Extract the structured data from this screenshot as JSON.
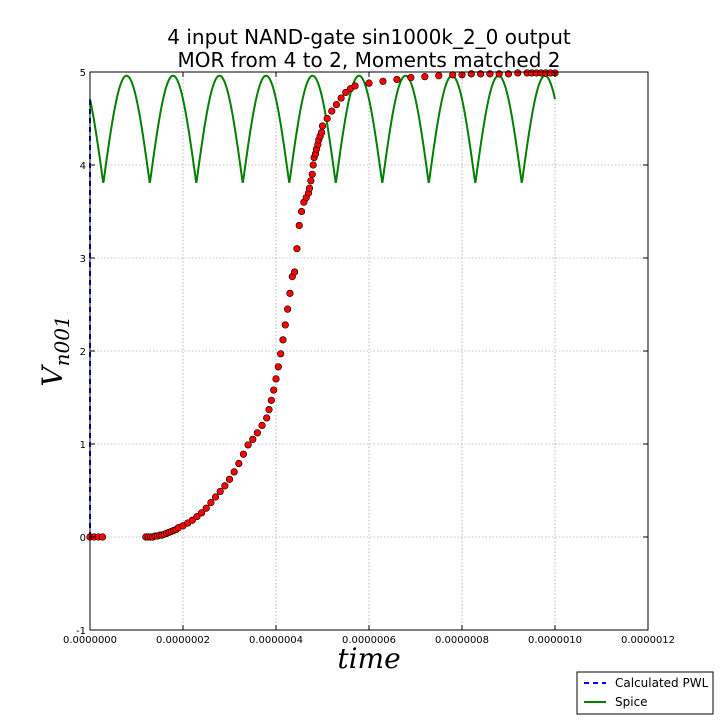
{
  "chart_data": {
    "type": "line",
    "title_line1": "4 input NAND-gate   sin1000k_2_0  output",
    "title_line2": "MOR from 4 to 2, Moments matched 2",
    "xlabel": "time",
    "ylabel_main": "V",
    "ylabel_sub": "n001",
    "xlim": [
      0,
      1.2e-06
    ],
    "ylim": [
      -1,
      5
    ],
    "x_ticks": [
      "0.0000000",
      "0.0000002",
      "0.0000004",
      "0.0000006",
      "0.0000008",
      "0.0000010",
      "0.0000012"
    ],
    "y_ticks": [
      "-1",
      "0",
      "1",
      "2",
      "3",
      "4",
      "5"
    ],
    "grid": true,
    "legend_position": "bottom-right",
    "series": [
      {
        "name": "Calculated PWL",
        "style": "dashed",
        "color": "#0000ff",
        "x": [
          0.0,
          0.0,
          0.0
        ],
        "y": [
          0.0,
          2.0,
          4.7
        ]
      },
      {
        "name": "Spice",
        "style": "solid",
        "color": "#007f00",
        "function": "sine_abs",
        "period": 1e-07,
        "phase_t0": 2.86e-08,
        "v_min": 3.8,
        "v_max": 4.96,
        "x_range": [
          0,
          1e-06
        ]
      },
      {
        "name": "",
        "style": "markers",
        "color": "#ff0000",
        "x": [
          0.0,
          9e-09,
          1.8e-08,
          2.7e-08,
          1.2e-07,
          1.25e-07,
          1.3e-07,
          1.35e-07,
          1.4e-07,
          1.45e-07,
          1.5e-07,
          1.55e-07,
          1.6e-07,
          1.65e-07,
          1.7e-07,
          1.75e-07,
          1.8e-07,
          1.85e-07,
          1.9e-07,
          2e-07,
          2.1e-07,
          2.2e-07,
          2.3e-07,
          2.4e-07,
          2.5e-07,
          2.6e-07,
          2.7e-07,
          2.8e-07,
          2.9e-07,
          3e-07,
          3.1e-07,
          3.2e-07,
          3.3e-07,
          3.4e-07,
          3.5e-07,
          3.6e-07,
          3.7e-07,
          3.8e-07,
          3.85e-07,
          3.9e-07,
          3.95e-07,
          4e-07,
          4.05e-07,
          4.1e-07,
          4.15e-07,
          4.2e-07,
          4.25e-07,
          4.3e-07,
          4.35e-07,
          4.4e-07,
          4.45e-07,
          4.5e-07,
          4.55e-07,
          4.6e-07,
          4.65e-07,
          4.7e-07,
          4.72e-07,
          4.75e-07,
          4.78e-07,
          4.8e-07,
          4.82e-07,
          4.85e-07,
          4.87e-07,
          4.9e-07,
          4.92e-07,
          4.95e-07,
          4.98e-07,
          5e-07,
          5.1e-07,
          5.2e-07,
          5.3e-07,
          5.4e-07,
          5.5e-07,
          5.6e-07,
          5.7e-07,
          6e-07,
          6.3e-07,
          6.6e-07,
          6.9e-07,
          7.2e-07,
          7.5e-07,
          7.8e-07,
          8e-07,
          8.2e-07,
          8.4e-07,
          8.6e-07,
          8.8e-07,
          9e-07,
          9.2e-07,
          9.4e-07,
          9.5e-07,
          9.6e-07,
          9.7e-07,
          9.8e-07,
          9.9e-07,
          1e-06
        ],
        "y": [
          0.0,
          0.0,
          0.0,
          0.0,
          0.0,
          0.0,
          0.0,
          0.0,
          0.01,
          0.01,
          0.02,
          0.02,
          0.03,
          0.04,
          0.05,
          0.06,
          0.07,
          0.08,
          0.1,
          0.12,
          0.15,
          0.18,
          0.22,
          0.26,
          0.31,
          0.37,
          0.43,
          0.49,
          0.55,
          0.62,
          0.7,
          0.79,
          0.89,
          0.99,
          1.05,
          1.12,
          1.2,
          1.28,
          1.37,
          1.47,
          1.58,
          1.7,
          1.83,
          1.97,
          2.12,
          2.28,
          2.45,
          2.62,
          2.8,
          2.85,
          3.1,
          3.35,
          3.5,
          3.6,
          3.65,
          3.7,
          3.75,
          3.83,
          3.9,
          4.0,
          4.08,
          4.12,
          4.17,
          4.22,
          4.27,
          4.31,
          4.35,
          4.42,
          4.5,
          4.58,
          4.65,
          4.72,
          4.78,
          4.82,
          4.85,
          4.88,
          4.9,
          4.92,
          4.94,
          4.95,
          4.96,
          4.97,
          4.97,
          4.98,
          4.98,
          4.98,
          4.98,
          4.98,
          4.99,
          4.99,
          4.99,
          4.99,
          4.99,
          4.99,
          4.99,
          4.99
        ]
      }
    ]
  }
}
